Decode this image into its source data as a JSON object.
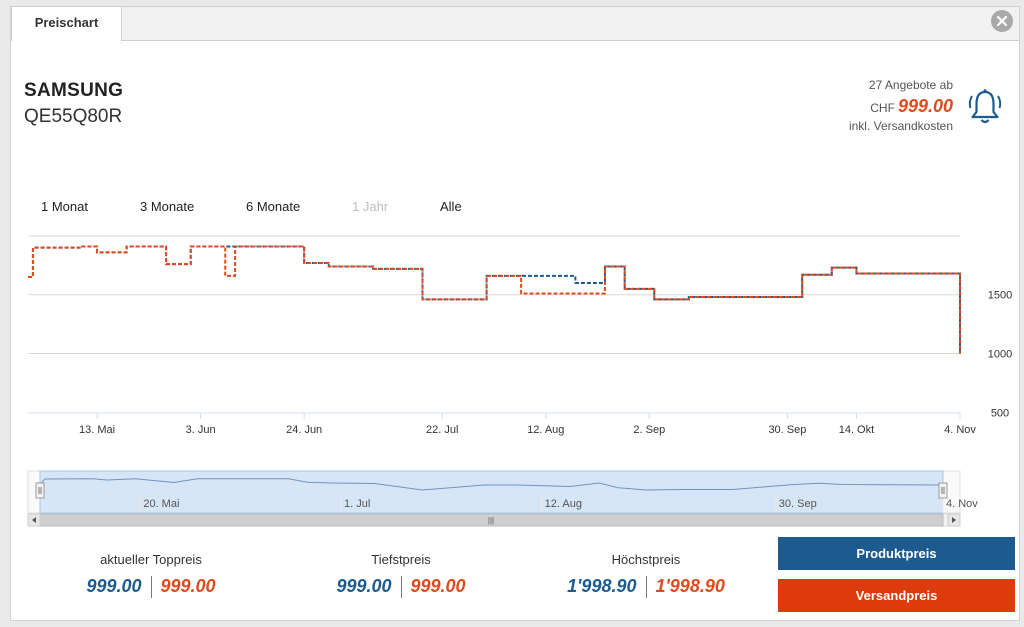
{
  "tab": {
    "label": "Preischart"
  },
  "product": {
    "brand": "SAMSUNG",
    "model": "QE55Q80R"
  },
  "offer": {
    "count_text": "27 Angebote ab",
    "currency": "CHF",
    "price": "999.00",
    "shipping_note": "inkl. Versandkosten"
  },
  "ranges": [
    {
      "label": "1 Monat",
      "enabled": true
    },
    {
      "label": "3 Monate",
      "enabled": true
    },
    {
      "label": "6 Monate",
      "enabled": true
    },
    {
      "label": "1 Jahr",
      "enabled": false
    },
    {
      "label": "Alle",
      "enabled": true
    }
  ],
  "chart_data": {
    "type": "line",
    "x_axis_labels": [
      "13. Mai",
      "3. Jun",
      "24. Jun",
      "22. Jul",
      "12. Aug",
      "2. Sep",
      "30. Sep",
      "14. Okt",
      "4. Nov"
    ],
    "y_axis_labels": [
      "1500",
      "1000",
      "500"
    ],
    "ylim": [
      500,
      2000
    ],
    "grid": true,
    "series": [
      {
        "color": "#1d5b8f",
        "x": [
          "2019-04-29",
          "2019-04-30",
          "2019-05-10",
          "2019-05-13",
          "2019-05-19",
          "2019-05-27",
          "2019-06-01",
          "2019-06-08",
          "2019-06-10",
          "2019-06-20",
          "2019-06-24",
          "2019-06-29",
          "2019-07-08",
          "2019-07-18",
          "2019-07-31",
          "2019-08-07",
          "2019-08-18",
          "2019-08-24",
          "2019-08-28",
          "2019-09-03",
          "2019-09-10",
          "2019-09-21",
          "2019-10-03",
          "2019-10-09",
          "2019-10-14",
          "2019-11-04",
          "2019-11-04"
        ],
        "y": [
          1650,
          1900,
          1910,
          1860,
          1910,
          1760,
          1910,
          1910,
          1910,
          1910,
          1770,
          1740,
          1720,
          1460,
          1660,
          1660,
          1600,
          1740,
          1550,
          1460,
          1480,
          1480,
          1670,
          1730,
          1680,
          1660,
          999
        ]
      },
      {
        "color": "#e04a1f",
        "x": [
          "2019-04-29",
          "2019-04-30",
          "2019-05-10",
          "2019-05-13",
          "2019-05-19",
          "2019-05-27",
          "2019-06-01",
          "2019-06-08",
          "2019-06-10",
          "2019-06-20",
          "2019-06-24",
          "2019-06-29",
          "2019-07-08",
          "2019-07-18",
          "2019-07-31",
          "2019-08-07",
          "2019-08-18",
          "2019-08-24",
          "2019-08-28",
          "2019-09-03",
          "2019-09-10",
          "2019-09-21",
          "2019-10-03",
          "2019-10-09",
          "2019-10-14",
          "2019-11-04",
          "2019-11-04"
        ],
        "y": [
          1650,
          1900,
          1910,
          1860,
          1910,
          1760,
          1910,
          1660,
          1910,
          1910,
          1770,
          1740,
          1720,
          1460,
          1660,
          1510,
          1510,
          1740,
          1550,
          1460,
          1480,
          1480,
          1670,
          1730,
          1680,
          1660,
          999
        ]
      }
    ],
    "navigator": {
      "x_axis_labels": [
        "20. Mai",
        "1. Jul",
        "12. Aug",
        "30. Sep",
        "4. Nov"
      ]
    }
  },
  "stats": [
    {
      "label": "aktueller Toppreis",
      "product_price": "999.00",
      "shipping_price": "999.00"
    },
    {
      "label": "Tiefstpreis",
      "product_price": "999.00",
      "shipping_price": "999.00"
    },
    {
      "label": "Höchstpreis",
      "product_price": "1'998.90",
      "shipping_price": "1'998.90"
    }
  ],
  "buttons": {
    "product_price": "Produktpreis",
    "shipping_price": "Versandpreis"
  },
  "colors": {
    "product": "#1d5b8f",
    "shipping": "#e04a1f"
  }
}
